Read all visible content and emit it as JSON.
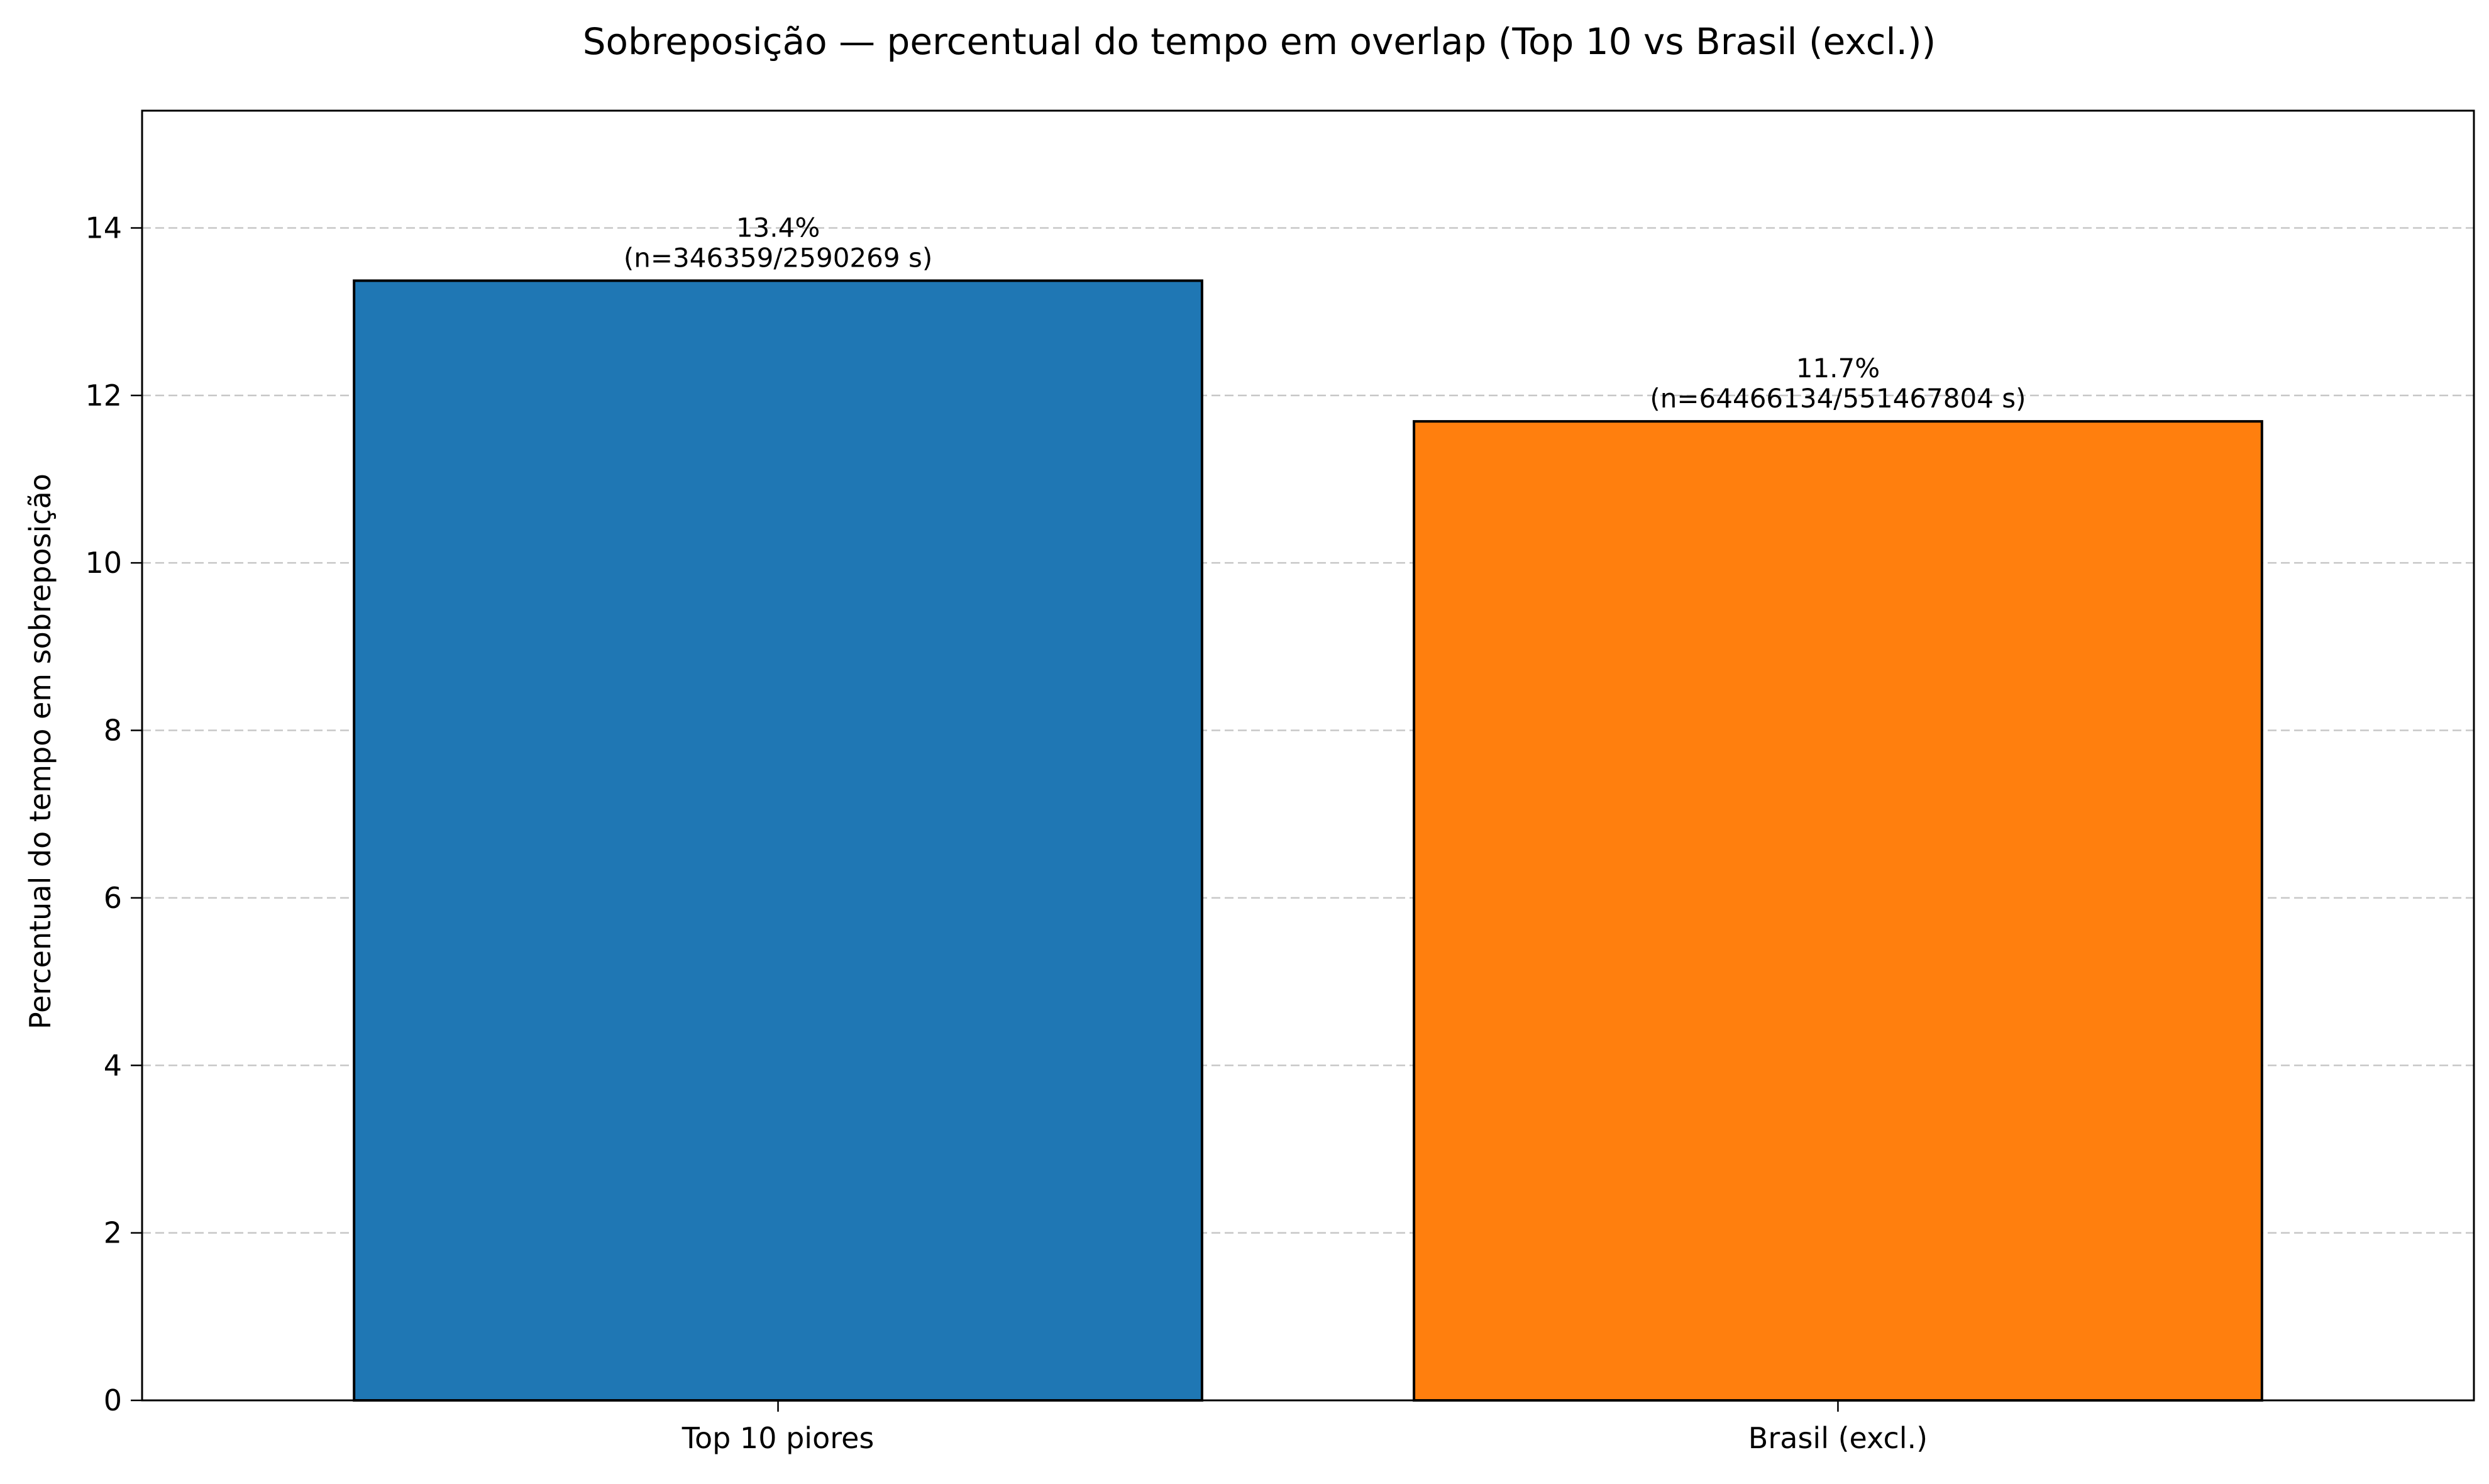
{
  "chart_data": {
    "type": "bar",
    "title": "Sobreposição — percentual do tempo em overlap (Top 10 vs Brasil (excl.))",
    "xlabel": "",
    "ylabel": "Percentual do tempo em sobreposição",
    "ylim": [
      0,
      15.4
    ],
    "yticks": [
      0,
      2,
      4,
      6,
      8,
      10,
      12,
      14
    ],
    "grid": "y-dashed",
    "categories": [
      "Top 10 piores",
      "Brasil (excl.)"
    ],
    "values": [
      13.37,
      11.69
    ],
    "bar_colors": [
      "#1f77b4",
      "#ff7f0e"
    ],
    "data_labels": [
      [
        "13.4%",
        "(n=346359/2590269 s)"
      ],
      [
        "11.7%",
        "(n=64466134/551467804 s)"
      ]
    ]
  }
}
